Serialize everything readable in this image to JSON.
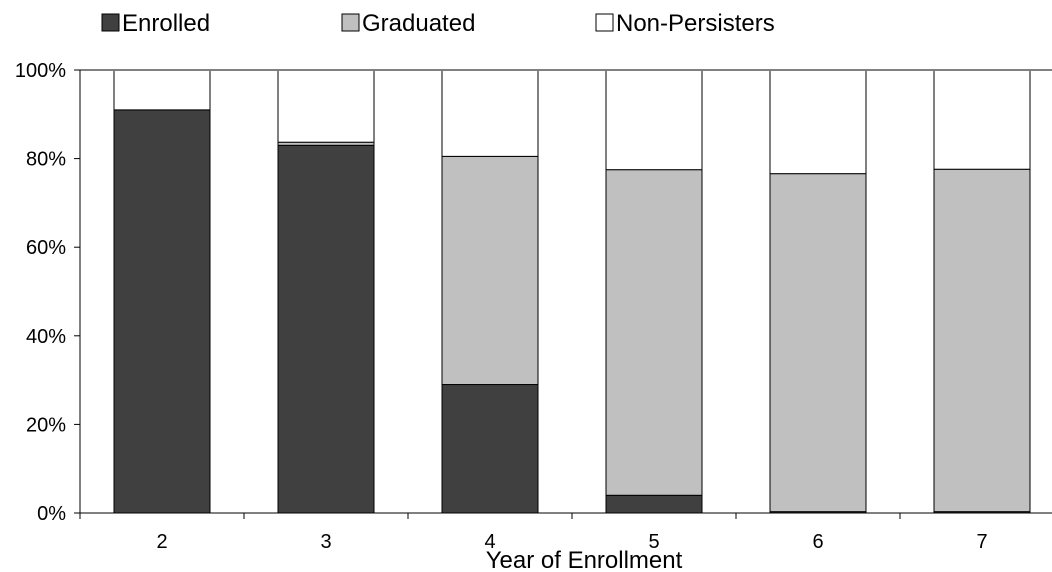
{
  "chart_data": {
    "type": "bar",
    "stacked": true,
    "percent_stacked": true,
    "categories": [
      "2",
      "3",
      "4",
      "5",
      "6",
      "7"
    ],
    "series": [
      {
        "name": "Enrolled",
        "color": "#404040",
        "values": [
          91,
          83,
          29,
          4,
          0.3,
          0.3
        ]
      },
      {
        "name": "Graduated",
        "color": "#c0c0c0",
        "values": [
          0,
          0.7,
          51.5,
          73.5,
          76.3,
          77.3
        ]
      },
      {
        "name": "Non-Persisters",
        "color": "#ffffff",
        "values": [
          9,
          16.3,
          19.5,
          22.5,
          23.4,
          22.4
        ]
      }
    ],
    "title": "",
    "xlabel": "Year of Enrollment",
    "ylabel": "",
    "ylim": [
      0,
      100
    ],
    "yticks": [
      "0%",
      "20%",
      "40%",
      "60%",
      "80%",
      "100%"
    ],
    "legend_position": "top",
    "grid": false
  }
}
